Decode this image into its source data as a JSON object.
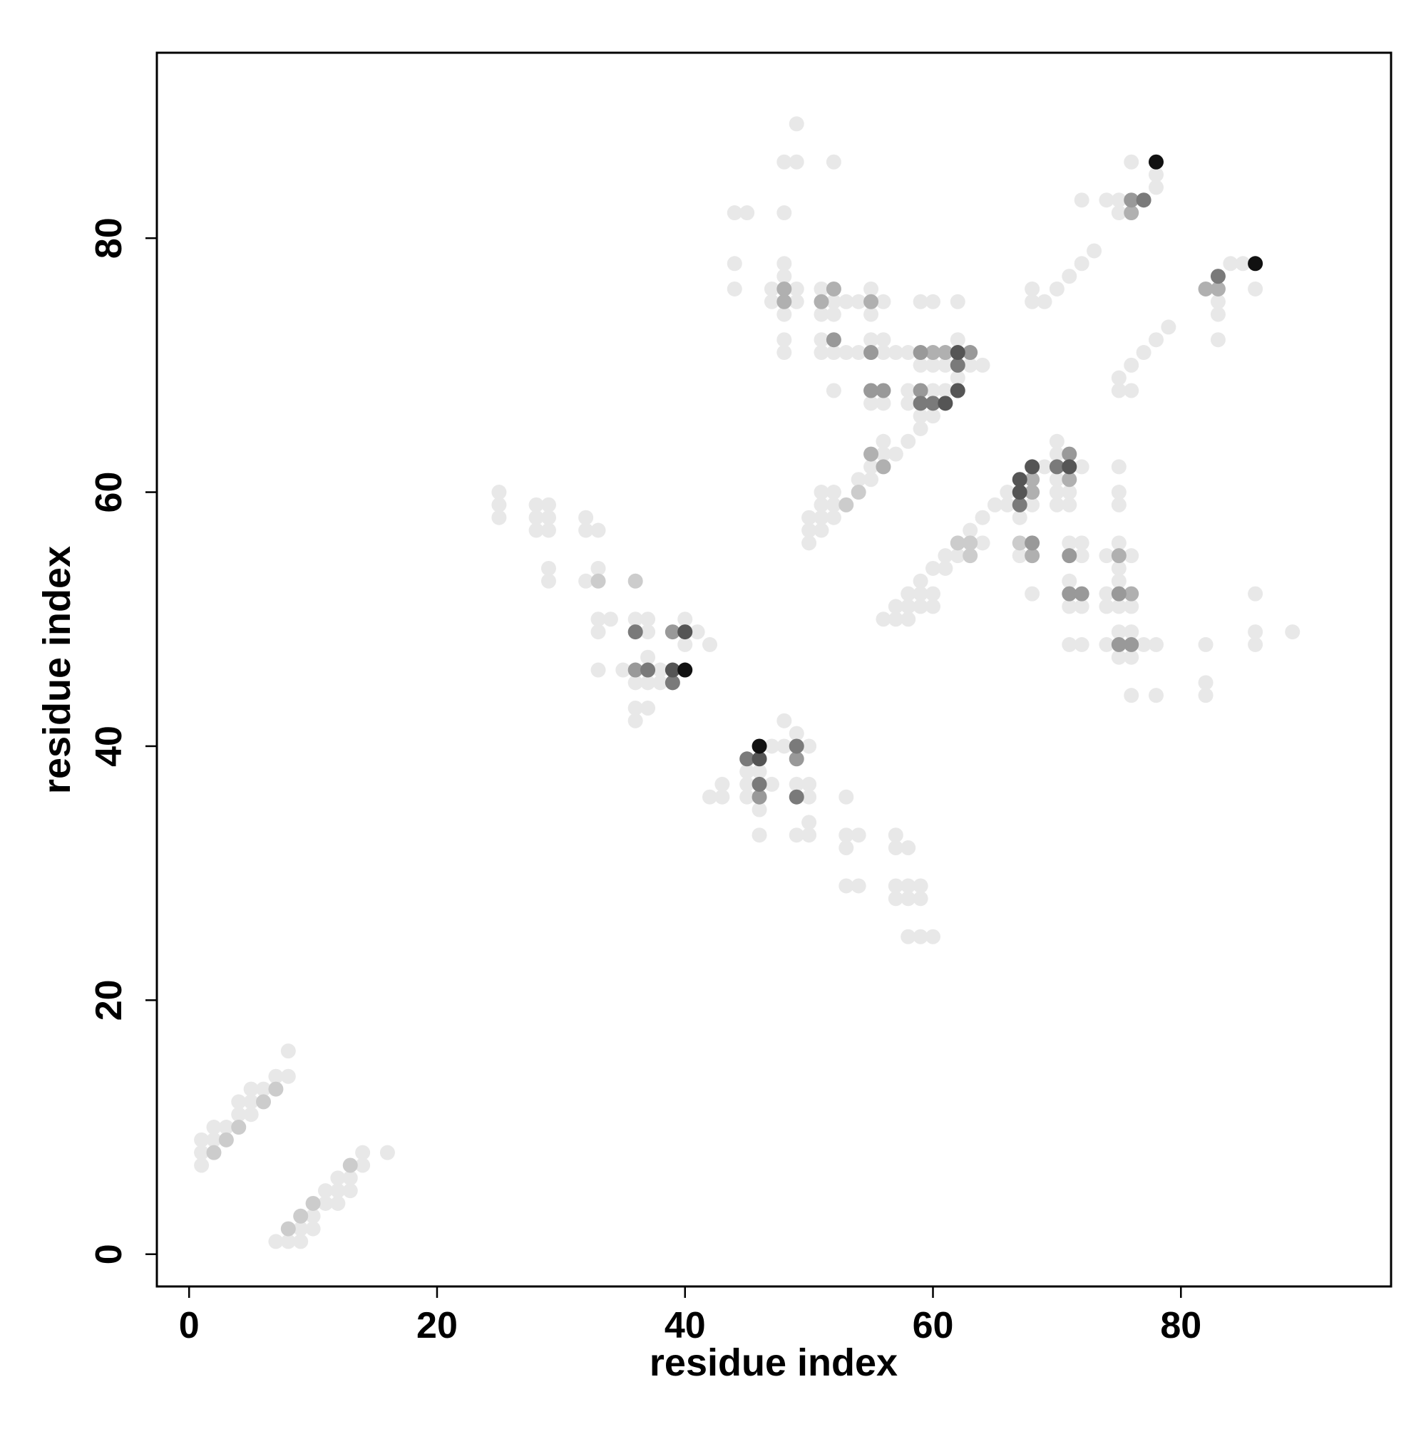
{
  "chart_data": {
    "type": "scatter",
    "x_label": "residue index",
    "y_label": "residue index",
    "xlim": [
      -2.6,
      96.95
    ],
    "ylim": [
      -2.54,
      94.6
    ],
    "xticks": [
      0,
      20,
      40,
      60,
      80
    ],
    "yticks": [
      0,
      20,
      40,
      60,
      80
    ],
    "grid": false,
    "series": [
      {
        "color": "#e8e8e8",
        "x": [
          1,
          1,
          1,
          2,
          2,
          3,
          4,
          4,
          5,
          5,
          5,
          6,
          7,
          8,
          8,
          7,
          8,
          9,
          9,
          10,
          10,
          11,
          11,
          12,
          12,
          12,
          13,
          13,
          14,
          14,
          16,
          25,
          25,
          25,
          28,
          28,
          28,
          29,
          29,
          29,
          29,
          29,
          32,
          32,
          32,
          33,
          33,
          33,
          33,
          33,
          34,
          35,
          36,
          36,
          36,
          36,
          37,
          37,
          37,
          37,
          37,
          38,
          38,
          40,
          40,
          41,
          42,
          42,
          43,
          43,
          45,
          45,
          45,
          46,
          46,
          46,
          47,
          47,
          48,
          48,
          49,
          49,
          49,
          50,
          50,
          50,
          50,
          50,
          53,
          53,
          53,
          53,
          54,
          54,
          57,
          57,
          57,
          57,
          58,
          58,
          58,
          58,
          59,
          59,
          59,
          60,
          44,
          44,
          44,
          45,
          47,
          47,
          48,
          48,
          48,
          48,
          48,
          48,
          48,
          49,
          49,
          49,
          49,
          51,
          51,
          51,
          51,
          52,
          52,
          52,
          52,
          52,
          53,
          53,
          54,
          54,
          55,
          55,
          55,
          55,
          56,
          56,
          56,
          56,
          57,
          58,
          58,
          58,
          59,
          59,
          59,
          59,
          60,
          60,
          60,
          60,
          61,
          61,
          62,
          62,
          62,
          63,
          64,
          50,
          50,
          50,
          51,
          51,
          51,
          51,
          52,
          52,
          52,
          54,
          55,
          55,
          56,
          56,
          57,
          58,
          56,
          57,
          57,
          58,
          58,
          58,
          59,
          59,
          59,
          60,
          60,
          60,
          61,
          61,
          62,
          63,
          64,
          64,
          65,
          66,
          66,
          67,
          67,
          68,
          68,
          69,
          70,
          70,
          70,
          70,
          70,
          71,
          71,
          71,
          71,
          71,
          71,
          72,
          72,
          72,
          72,
          72,
          74,
          74,
          74,
          74,
          75,
          75,
          75,
          75,
          75,
          75,
          75,
          75,
          75,
          76,
          76,
          76,
          76,
          76,
          77,
          78,
          78,
          82,
          82,
          82,
          86,
          86,
          86,
          89,
          68,
          68,
          69,
          70,
          71,
          72,
          73,
          72,
          74,
          75,
          75,
          76,
          78,
          78,
          75,
          75,
          76,
          76,
          77,
          78,
          79,
          83,
          83,
          83,
          84,
          85,
          86
        ],
        "values": [
          7,
          8,
          9,
          9,
          10,
          10,
          11,
          12,
          11,
          12,
          13,
          13,
          14,
          14,
          16,
          1,
          1,
          1,
          2,
          2,
          3,
          4,
          5,
          4,
          5,
          6,
          5,
          6,
          7,
          8,
          8,
          58,
          59,
          60,
          57,
          58,
          59,
          57,
          58,
          59,
          53,
          54,
          53,
          57,
          58,
          54,
          57,
          49,
          50,
          46,
          50,
          46,
          42,
          43,
          45,
          50,
          43,
          45,
          47,
          49,
          50,
          45,
          46,
          48,
          50,
          49,
          48,
          36,
          36,
          37,
          36,
          37,
          38,
          33,
          35,
          38,
          37,
          40,
          40,
          42,
          33,
          37,
          41,
          33,
          34,
          36,
          37,
          40,
          29,
          32,
          33,
          36,
          29,
          33,
          28,
          29,
          32,
          33,
          25,
          28,
          29,
          32,
          25,
          28,
          29,
          25,
          76,
          78,
          82,
          82,
          75,
          76,
          71,
          72,
          74,
          77,
          78,
          82,
          86,
          75,
          76,
          86,
          89,
          71,
          72,
          74,
          76,
          68,
          71,
          74,
          75,
          86,
          71,
          75,
          71,
          75,
          67,
          72,
          74,
          76,
          67,
          71,
          72,
          75,
          71,
          67,
          68,
          71,
          65,
          66,
          70,
          75,
          66,
          68,
          70,
          75,
          68,
          70,
          69,
          72,
          75,
          70,
          70,
          56,
          57,
          58,
          57,
          58,
          59,
          60,
          58,
          59,
          60,
          61,
          61,
          62,
          63,
          64,
          63,
          64,
          50,
          50,
          51,
          50,
          51,
          52,
          51,
          52,
          53,
          51,
          52,
          54,
          54,
          55,
          55,
          57,
          56,
          58,
          59,
          59,
          60,
          55,
          58,
          52,
          59,
          62,
          59,
          60,
          61,
          63,
          64,
          48,
          51,
          53,
          56,
          59,
          60,
          48,
          51,
          55,
          56,
          62,
          48,
          51,
          52,
          55,
          47,
          49,
          51,
          53,
          54,
          56,
          59,
          60,
          62,
          44,
          47,
          49,
          51,
          55,
          48,
          44,
          48,
          44,
          45,
          48,
          48,
          49,
          52,
          49,
          75,
          76,
          75,
          76,
          77,
          78,
          79,
          83,
          83,
          82,
          83,
          86,
          84,
          85,
          68,
          69,
          68,
          70,
          71,
          72,
          73,
          72,
          74,
          75,
          78,
          78,
          76
        ]
      },
      {
        "color": "#cccccc",
        "x": [
          2,
          3,
          4,
          6,
          7,
          8,
          9,
          10,
          13,
          33,
          36,
          53,
          54,
          62,
          63,
          63,
          67
        ],
        "values": [
          8,
          9,
          10,
          12,
          13,
          2,
          3,
          4,
          7,
          53,
          53,
          59,
          60,
          56,
          56,
          55,
          56
        ]
      },
      {
        "color": "#b0b0b0",
        "x": [
          60,
          61,
          51,
          52,
          48,
          48,
          55,
          55,
          56,
          71,
          68,
          68,
          68,
          76,
          75,
          76,
          83,
          82
        ],
        "values": [
          71,
          71,
          75,
          76,
          76,
          75,
          75,
          63,
          62,
          61,
          61,
          60,
          55,
          52,
          55,
          82,
          76,
          76
        ]
      },
      {
        "color": "#999999",
        "x": [
          59,
          59,
          63,
          55,
          55,
          56,
          52,
          71,
          68,
          71,
          71,
          72,
          75,
          75,
          76,
          76,
          39,
          36,
          49,
          46
        ],
        "values": [
          68,
          71,
          71,
          71,
          68,
          68,
          72,
          63,
          56,
          55,
          52,
          52,
          52,
          48,
          48,
          83,
          49,
          46,
          39,
          36
        ]
      },
      {
        "color": "#7a7a7a",
        "x": [
          62,
          60,
          59,
          67,
          70,
          77,
          83,
          36,
          37,
          39,
          45,
          46,
          49,
          49
        ],
        "values": [
          70,
          67,
          67,
          59,
          62,
          83,
          77,
          49,
          46,
          45,
          39,
          37,
          40,
          36
        ]
      },
      {
        "color": "#555555",
        "x": [
          62,
          61,
          62,
          67,
          68,
          67,
          71,
          46,
          39,
          40
        ],
        "values": [
          68,
          67,
          71,
          61,
          62,
          60,
          62,
          39,
          46,
          49
        ]
      },
      {
        "color": "#111111",
        "x": [
          78,
          86,
          40,
          46
        ],
        "values": [
          86,
          78,
          46,
          40
        ]
      }
    ]
  }
}
